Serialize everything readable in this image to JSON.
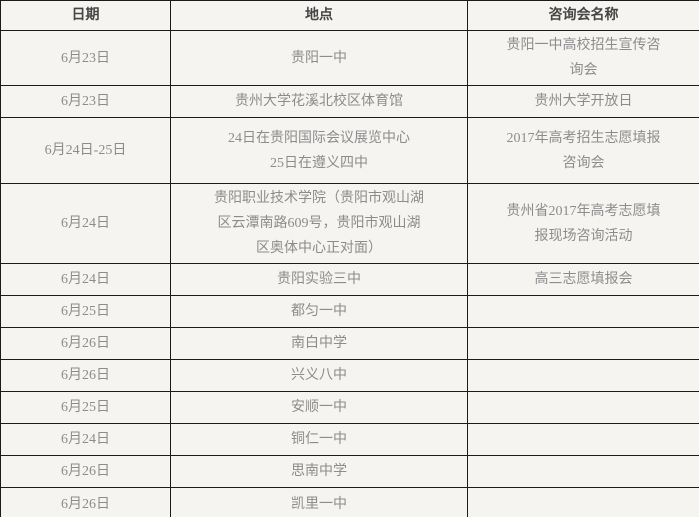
{
  "table": {
    "columns": {
      "date": "日期",
      "location": "地点",
      "event": "咨询会名称"
    },
    "rows": [
      {
        "date": "6月23日",
        "location": "贵阳一中",
        "event": "贵阳一中高校招生宣传咨\n询会"
      },
      {
        "date": "6月23日",
        "location": "贵州大学花溪北校区体育馆",
        "event": "贵州大学开放日"
      },
      {
        "date": "6月24日-25日",
        "location": "24日在贵阳国际会议展览中心\n25日在遵义四中",
        "event": "2017年高考招生志愿填报\n咨询会"
      },
      {
        "date": "6月24日",
        "location": "贵阳职业技术学院（贵阳市观山湖\n区云潭南路609号，贵阳市观山湖\n区奥体中心正对面）",
        "event": "贵州省2017年高考志愿填\n报现场咨询活动"
      },
      {
        "date": "6月24日",
        "location": "贵阳实验三中",
        "event": "高三志愿填报会"
      },
      {
        "date": "6月25日",
        "location": "都匀一中",
        "event": ""
      },
      {
        "date": "6月26日",
        "location": "南白中学",
        "event": ""
      },
      {
        "date": "6月26日",
        "location": "兴义八中",
        "event": ""
      },
      {
        "date": "6月25日",
        "location": "安顺一中",
        "event": ""
      },
      {
        "date": "6月24日",
        "location": "铜仁一中",
        "event": ""
      },
      {
        "date": "6月26日",
        "location": "思南中学",
        "event": ""
      },
      {
        "date": "6月26日",
        "location": "凯里一中",
        "event": ""
      }
    ],
    "colors": {
      "background": "#f5f4f1",
      "border": "#1b1b1b",
      "body_text": "#8c8c8c",
      "header_text": "#454545"
    }
  }
}
